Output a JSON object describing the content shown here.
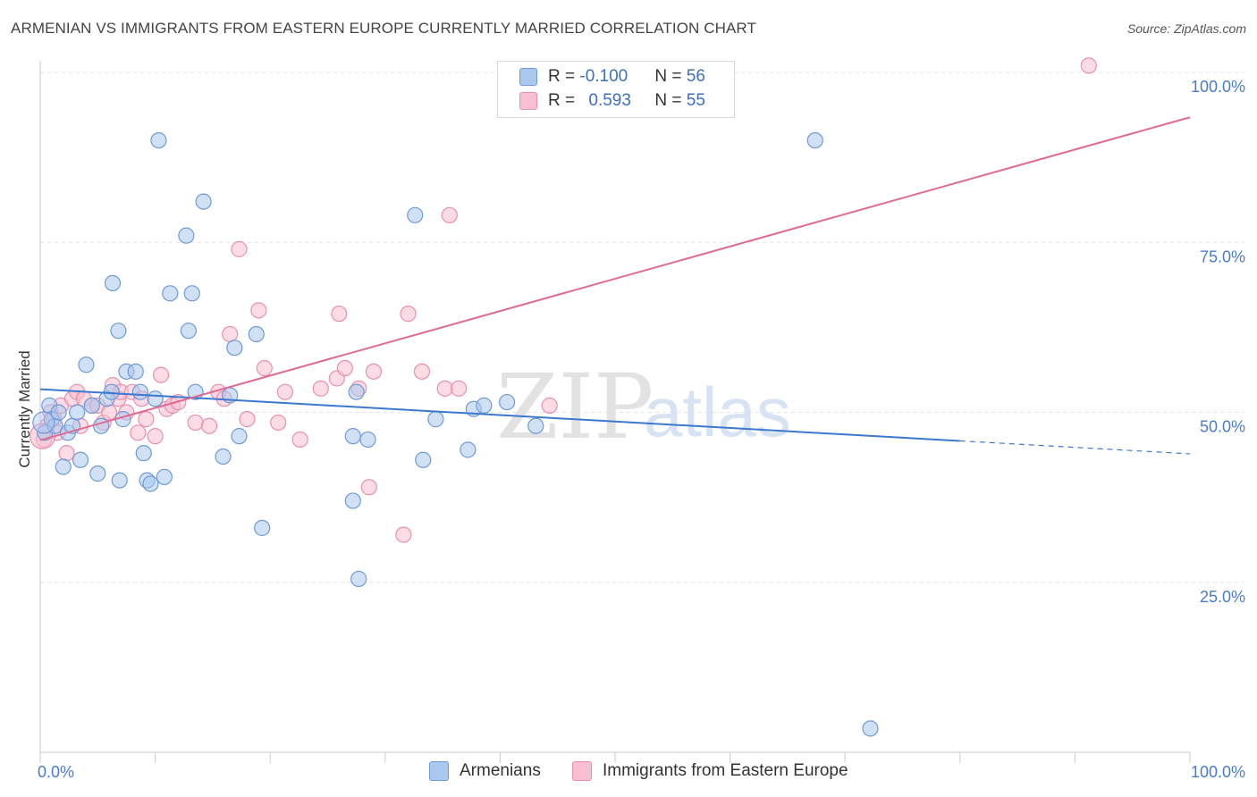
{
  "title": "ARMENIAN VS IMMIGRANTS FROM EASTERN EUROPE CURRENTLY MARRIED CORRELATION CHART",
  "source": "Source: ZipAtlas.com",
  "watermark": {
    "zip": "ZIP",
    "atlas": "atlas"
  },
  "colors": {
    "blue_fill": "#aac8ee",
    "blue_stroke": "#6f9ad6",
    "blue_line": "#3b78d0",
    "pink_fill": "#f7bfd0",
    "pink_stroke": "#e98fad",
    "pink_line": "#e06a94",
    "tick_text": "#4a7cc9",
    "grid": "#e3e3e3"
  },
  "legend_top": {
    "rows": [
      {
        "r_label": "R = ",
        "r_value": "-0.100",
        "n_label": "N = ",
        "n_value": "56"
      },
      {
        "r_label": "R = ",
        "r_value": "0.593",
        "n_label": "N = ",
        "n_value": "55"
      }
    ]
  },
  "bottom_legend": [
    "Armenians",
    "Immigrants from Eastern Europe"
  ],
  "chart_data": {
    "type": "scatter",
    "title": "ARMENIAN VS IMMIGRANTS FROM EASTERN EUROPE CURRENTLY MARRIED CORRELATION CHART",
    "xlabel": "",
    "ylabel": "Currently Married",
    "xlim": [
      0,
      100
    ],
    "ylim": [
      0,
      100
    ],
    "x_tick_labels": [
      "0.0%",
      "100.0%"
    ],
    "y_ticks": [
      {
        "value": 100,
        "label": "100.0%"
      },
      {
        "value": 75,
        "label": "75.0%"
      },
      {
        "value": 50,
        "label": "50.0%"
      },
      {
        "value": 25,
        "label": "25.0%"
      }
    ],
    "grid": true,
    "legend": "top-center",
    "series": [
      {
        "name": "Armenians",
        "color": "blue",
        "R": -0.1,
        "N": 56,
        "trend": {
          "x0": 0,
          "y0": 53.4,
          "x1": 80,
          "y1": 45.8,
          "dash_to_x": 100,
          "dash_to_y": 43.9
        },
        "points": [
          [
            0.4,
            47
          ],
          [
            0.8,
            51
          ],
          [
            1.0,
            49
          ],
          [
            1.3,
            48
          ],
          [
            1.6,
            50
          ],
          [
            2.0,
            42
          ],
          [
            2.4,
            47
          ],
          [
            2.8,
            48
          ],
          [
            3.2,
            50
          ],
          [
            3.5,
            43
          ],
          [
            4.0,
            57
          ],
          [
            4.5,
            51
          ],
          [
            5.0,
            41
          ],
          [
            5.3,
            48
          ],
          [
            5.8,
            52
          ],
          [
            6.2,
            53
          ],
          [
            6.8,
            62
          ],
          [
            6.3,
            69
          ],
          [
            6.9,
            40
          ],
          [
            7.5,
            56
          ],
          [
            7.2,
            49
          ],
          [
            8.3,
            56
          ],
          [
            8.7,
            53
          ],
          [
            9.0,
            44
          ],
          [
            9.3,
            40
          ],
          [
            9.6,
            39.5
          ],
          [
            10.0,
            52
          ],
          [
            10.3,
            90
          ],
          [
            10.8,
            40.5
          ],
          [
            11.3,
            67.5
          ],
          [
            12.7,
            76
          ],
          [
            12.9,
            62
          ],
          [
            13.2,
            67.5
          ],
          [
            13.5,
            53
          ],
          [
            14.2,
            81
          ],
          [
            15.9,
            43.5
          ],
          [
            16.5,
            52.5
          ],
          [
            16.9,
            59.5
          ],
          [
            17.3,
            46.5
          ],
          [
            18.8,
            61.5
          ],
          [
            19.3,
            33
          ],
          [
            27.2,
            37
          ],
          [
            27.2,
            46.5
          ],
          [
            27.5,
            53
          ],
          [
            27.7,
            25.5
          ],
          [
            28.5,
            46
          ],
          [
            32.6,
            79
          ],
          [
            33.3,
            43
          ],
          [
            34.4,
            49
          ],
          [
            37.2,
            44.5
          ],
          [
            37.7,
            50.5
          ],
          [
            38.6,
            51
          ],
          [
            40.6,
            51.5
          ],
          [
            43.1,
            48
          ],
          [
            67.4,
            90
          ],
          [
            72.2,
            3.5
          ]
        ]
      },
      {
        "name": "Immigrants from Eastern Europe",
        "color": "pink",
        "R": 0.593,
        "N": 55,
        "trend": {
          "x0": 0,
          "y0": 45.9,
          "x1": 100,
          "y1": 93.4
        },
        "points": [
          [
            0.3,
            46
          ],
          [
            0.6,
            48
          ],
          [
            0.9,
            50
          ],
          [
            1.2,
            49
          ],
          [
            1.5,
            47
          ],
          [
            1.8,
            51
          ],
          [
            2.3,
            44
          ],
          [
            2.8,
            52
          ],
          [
            3.2,
            53
          ],
          [
            3.5,
            48
          ],
          [
            3.8,
            52
          ],
          [
            4.5,
            51
          ],
          [
            5.0,
            51
          ],
          [
            5.5,
            48.5
          ],
          [
            6.0,
            50
          ],
          [
            6.3,
            54
          ],
          [
            6.8,
            52
          ],
          [
            7.0,
            53
          ],
          [
            7.5,
            50
          ],
          [
            8.0,
            53
          ],
          [
            8.5,
            47
          ],
          [
            8.8,
            52
          ],
          [
            9.2,
            49
          ],
          [
            10.0,
            46.5
          ],
          [
            10.5,
            55.5
          ],
          [
            11.0,
            50.5
          ],
          [
            11.5,
            51
          ],
          [
            12.0,
            51.5
          ],
          [
            13.5,
            48.5
          ],
          [
            14.7,
            48
          ],
          [
            15.5,
            53
          ],
          [
            16.0,
            52
          ],
          [
            16.5,
            61.5
          ],
          [
            17.3,
            74
          ],
          [
            18.0,
            49
          ],
          [
            19.0,
            65
          ],
          [
            19.5,
            56.5
          ],
          [
            20.7,
            48.5
          ],
          [
            21.3,
            53
          ],
          [
            22.6,
            46
          ],
          [
            24.4,
            53.5
          ],
          [
            25.8,
            55
          ],
          [
            26.0,
            64.5
          ],
          [
            26.5,
            56.5
          ],
          [
            27.7,
            53.5
          ],
          [
            28.6,
            39
          ],
          [
            29.0,
            56
          ],
          [
            31.6,
            32
          ],
          [
            32.0,
            64.5
          ],
          [
            33.2,
            56
          ],
          [
            35.2,
            53.5
          ],
          [
            35.6,
            79
          ],
          [
            36.4,
            53.5
          ],
          [
            44.3,
            51
          ],
          [
            91.2,
            101
          ]
        ]
      }
    ]
  }
}
